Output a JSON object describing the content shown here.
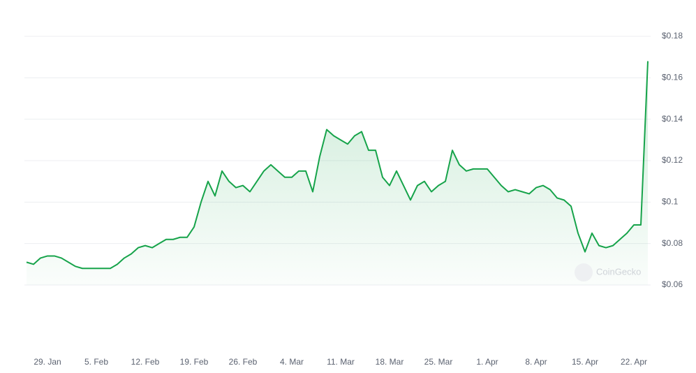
{
  "chart_data": {
    "type": "area",
    "watermark": "CoinGecko",
    "categories": [
      null,
      null,
      null,
      "29. Jan",
      null,
      null,
      null,
      null,
      null,
      null,
      "5. Feb",
      null,
      null,
      null,
      null,
      null,
      null,
      "12. Feb",
      null,
      null,
      null,
      null,
      null,
      null,
      "19. Feb",
      null,
      null,
      null,
      null,
      null,
      null,
      "26. Feb",
      null,
      null,
      null,
      null,
      null,
      null,
      "4. Mar",
      null,
      null,
      null,
      null,
      null,
      null,
      "11. Mar",
      null,
      null,
      null,
      null,
      null,
      null,
      "18. Mar",
      null,
      null,
      null,
      null,
      null,
      null,
      "25. Mar",
      null,
      null,
      null,
      null,
      null,
      null,
      "1. Apr",
      null,
      null,
      null,
      null,
      null,
      null,
      "8. Apr",
      null,
      null,
      null,
      null,
      null,
      null,
      "15. Apr",
      null,
      null,
      null,
      null,
      null,
      null,
      "22. Apr",
      null,
      null
    ],
    "values": [
      0.071,
      0.07,
      0.073,
      0.074,
      0.074,
      0.073,
      0.071,
      0.069,
      0.068,
      0.068,
      0.068,
      0.068,
      0.068,
      0.07,
      0.073,
      0.075,
      0.078,
      0.079,
      0.078,
      0.08,
      0.082,
      0.082,
      0.083,
      0.083,
      0.088,
      0.1,
      0.11,
      0.103,
      0.115,
      0.11,
      0.107,
      0.108,
      0.105,
      0.11,
      0.115,
      0.118,
      0.115,
      0.112,
      0.112,
      0.115,
      0.115,
      0.105,
      0.122,
      0.135,
      0.132,
      0.13,
      0.128,
      0.132,
      0.134,
      0.125,
      0.125,
      0.112,
      0.108,
      0.115,
      0.108,
      0.101,
      0.108,
      0.11,
      0.105,
      0.108,
      0.11,
      0.125,
      0.118,
      0.115,
      0.116,
      0.116,
      0.116,
      0.112,
      0.108,
      0.105,
      0.106,
      0.105,
      0.104,
      0.107,
      0.108,
      0.106,
      0.102,
      0.101,
      0.098,
      0.085,
      0.076,
      0.085,
      0.079,
      0.078,
      0.079,
      0.082,
      0.085,
      0.089,
      0.089,
      0.168
    ],
    "color": "#16a34a",
    "ylim": [
      0.06,
      0.18
    ],
    "yticks": [
      {
        "value": 0.06,
        "label": "$0.06"
      },
      {
        "value": 0.08,
        "label": "$0.08"
      },
      {
        "value": 0.1,
        "label": "$0.1"
      },
      {
        "value": 0.12,
        "label": "$0.12"
      },
      {
        "value": 0.14,
        "label": "$0.14"
      },
      {
        "value": 0.16,
        "label": "$0.16"
      },
      {
        "value": 0.18,
        "label": "$0.18"
      }
    ],
    "grid": true
  }
}
